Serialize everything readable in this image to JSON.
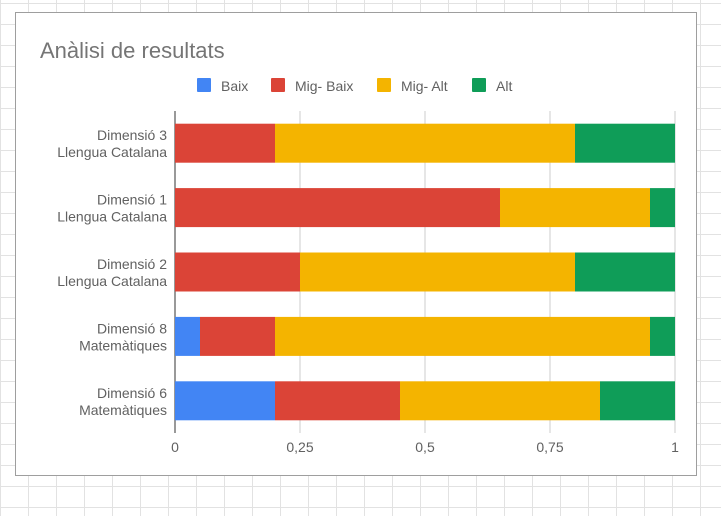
{
  "chart_data": {
    "type": "bar",
    "orientation": "horizontal",
    "stacked": true,
    "title": "Anàlisi de resultats",
    "legend_position": "top",
    "categories": [
      [
        "Dimensió 3",
        "Llengua Catalana"
      ],
      [
        "Dimensió 1",
        "Llengua Catalana"
      ],
      [
        "Dimensió 2",
        "Llengua Catalana"
      ],
      [
        "Dimensió 8",
        "Matemàtiques"
      ],
      [
        "Dimensió 6",
        "Matemàtiques"
      ]
    ],
    "series": [
      {
        "name": "Baix",
        "color": "#4285f4",
        "values": [
          0,
          0,
          0,
          0.05,
          0.2
        ]
      },
      {
        "name": "Mig- Baix",
        "color": "#db4437",
        "values": [
          0.2,
          0.65,
          0.25,
          0.15,
          0.25
        ]
      },
      {
        "name": "Mig- Alt",
        "color": "#f4b400",
        "values": [
          0.6,
          0.3,
          0.55,
          0.75,
          0.4
        ]
      },
      {
        "name": "Alt",
        "color": "#0f9d58",
        "values": [
          0.2,
          0.05,
          0.2,
          0.05,
          0.15
        ]
      }
    ],
    "xlim": [
      0,
      1
    ],
    "xticks": [
      0,
      0.25,
      0.5,
      0.75,
      1
    ],
    "xtick_labels": [
      "0",
      "0,25",
      "0,5",
      "0,75",
      "1"
    ],
    "grid": true
  }
}
